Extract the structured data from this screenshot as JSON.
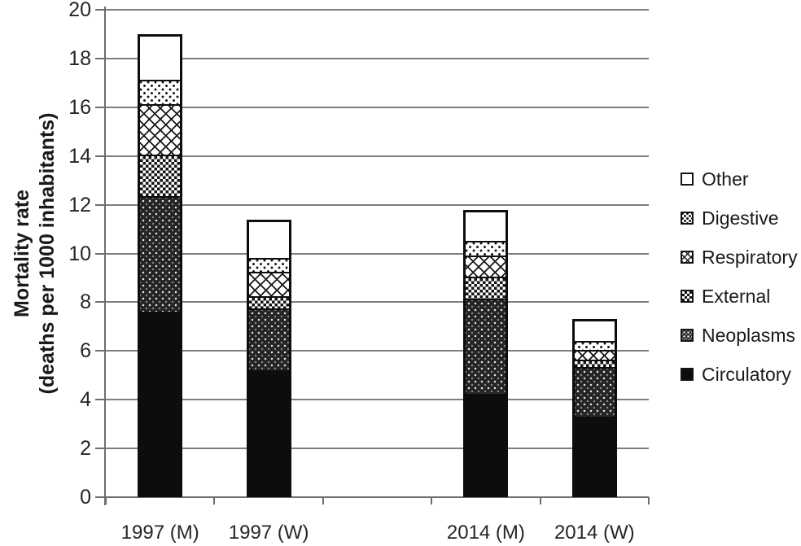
{
  "chart_data": {
    "type": "bar",
    "subtype": "stacked-vertical",
    "ylabel_line1": "Mortality rate",
    "ylabel_line2": "(deaths per 1000 inhabitants)",
    "xlabel": "",
    "title": "",
    "ylim": [
      0,
      20
    ],
    "yticks": [
      0,
      2,
      4,
      6,
      8,
      10,
      12,
      14,
      16,
      18,
      20
    ],
    "grid": "horizontal-on",
    "slot_count": 5,
    "categories": [
      {
        "label": "1997 (M)",
        "slot": 0
      },
      {
        "label": "1997 (W)",
        "slot": 1
      },
      {
        "label": "2014 (M)",
        "slot": 3
      },
      {
        "label": "2014 (W)",
        "slot": 4
      }
    ],
    "series": [
      {
        "name": "Circulatory",
        "pattern": "solid-black",
        "values": [
          7.6,
          5.2,
          4.2,
          3.3
        ]
      },
      {
        "name": "Neoplasms",
        "pattern": "dark-dots",
        "values": [
          4.8,
          2.6,
          4.0,
          2.1
        ]
      },
      {
        "name": "External",
        "pattern": "checker",
        "values": [
          1.7,
          0.5,
          0.9,
          0.3
        ]
      },
      {
        "name": "Respiratory",
        "pattern": "diamond-hatch",
        "values": [
          2.1,
          1.0,
          0.9,
          0.4
        ]
      },
      {
        "name": "Digestive",
        "pattern": "light-dots",
        "values": [
          1.0,
          0.6,
          0.6,
          0.4
        ]
      },
      {
        "name": "Other",
        "pattern": "white",
        "values": [
          1.8,
          1.5,
          1.2,
          0.8
        ]
      }
    ],
    "stack_totals": [
      19.0,
      11.4,
      11.8,
      7.3
    ],
    "legend": [
      "Other",
      "Digestive",
      "Respiratory",
      "External",
      "Neoplasms",
      "Circulatory"
    ],
    "legend_position": "right"
  },
  "colors": {
    "ink": "#0d0d0d",
    "gridline": "#7e7e7e",
    "axis": "#6e6e6e",
    "tick_text": "#262626"
  }
}
